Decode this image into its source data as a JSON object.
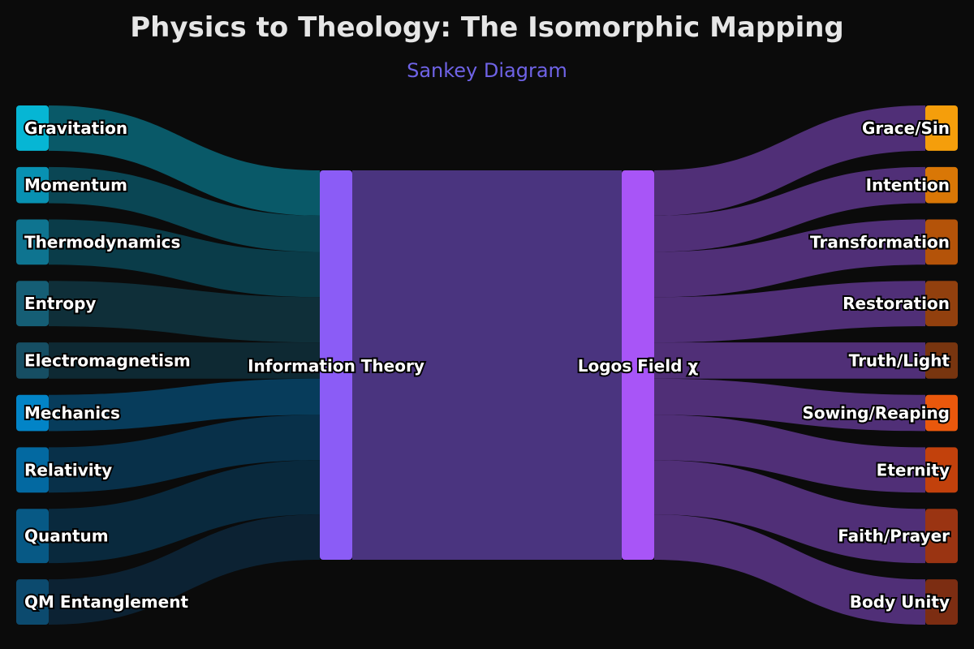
{
  "title": "Physics to Theology: The Isomorphic Mapping",
  "subtitle": "Sankey Diagram",
  "hub_left": {
    "label": "Information Theory",
    "color": "#8b5cf6"
  },
  "hub_right": {
    "label": "Logos Field χ",
    "color": "#a855f7"
  },
  "middle_link_color": "#4a347f",
  "right_link_color": "#54317d",
  "sources": [
    {
      "label": "Gravitation",
      "value": 5,
      "color": "#06b6d4",
      "link_color": "#0a5e6e"
    },
    {
      "label": "Momentum",
      "value": 4,
      "color": "#0891b2",
      "link_color": "#0b4a58"
    },
    {
      "label": "Thermodynamics",
      "value": 5,
      "color": "#0e7490",
      "link_color": "#0b3f4d"
    },
    {
      "label": "Entropy",
      "value": 5,
      "color": "#155e75",
      "link_color": "#10313c"
    },
    {
      "label": "Electromagnetism",
      "value": 4,
      "color": "#164e63",
      "link_color": "#0f2b36"
    },
    {
      "label": "Mechanics",
      "value": 4,
      "color": "#0284c7",
      "link_color": "#073f60"
    },
    {
      "label": "Relativity",
      "value": 5,
      "color": "#0369a1",
      "link_color": "#08334d"
    },
    {
      "label": "Quantum",
      "value": 6,
      "color": "#075985",
      "link_color": "#0a2b40"
    },
    {
      "label": "QM Entanglement",
      "value": 5,
      "color": "#0c4a6e",
      "link_color": "#0d2436"
    }
  ],
  "targets": [
    {
      "label": "Grace/Sin",
      "value": 5,
      "color": "#f59e0b"
    },
    {
      "label": "Intention",
      "value": 4,
      "color": "#d97706"
    },
    {
      "label": "Transformation",
      "value": 5,
      "color": "#b45309"
    },
    {
      "label": "Restoration",
      "value": 5,
      "color": "#92400e"
    },
    {
      "label": "Truth/Light",
      "value": 4,
      "color": "#78350f"
    },
    {
      "label": "Sowing/Reaping",
      "value": 4,
      "color": "#ea580c"
    },
    {
      "label": "Eternity",
      "value": 5,
      "color": "#c2410c"
    },
    {
      "label": "Faith/Prayer",
      "value": 6,
      "color": "#9a3412"
    },
    {
      "label": "Body Unity",
      "value": 5,
      "color": "#7c2d12"
    }
  ]
}
